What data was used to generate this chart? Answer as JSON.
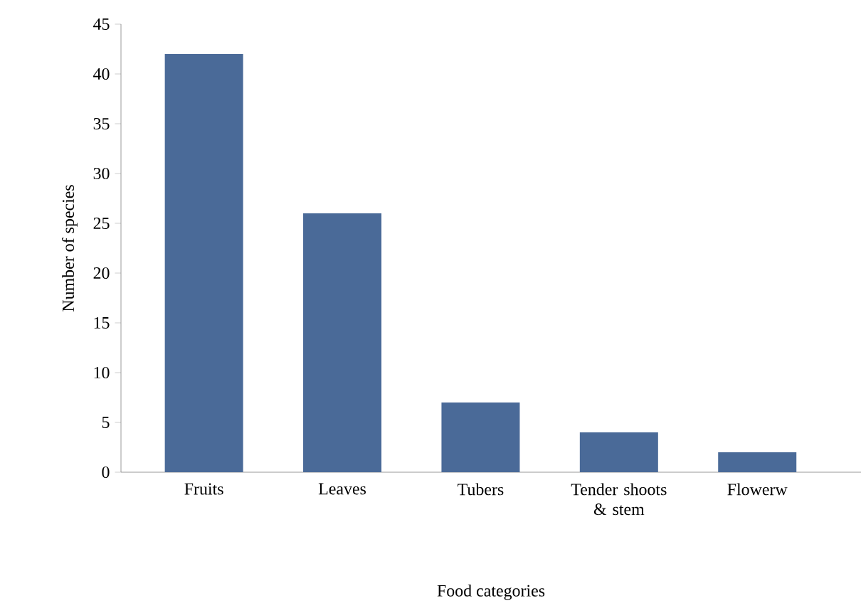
{
  "chart_data": {
    "type": "bar",
    "xlabel": "Food categories",
    "ylabel": "Number of species",
    "categories": [
      "Fruits",
      "Leaves",
      "Tubers",
      "Tender shoots & stem",
      "Flowerw"
    ],
    "values": [
      42,
      26,
      7,
      4,
      2
    ],
    "color": "#4a6a98",
    "ylim": [
      0,
      45
    ],
    "yticks": [
      0,
      5,
      10,
      15,
      20,
      25,
      30,
      35,
      40,
      45
    ],
    "grid": false
  }
}
